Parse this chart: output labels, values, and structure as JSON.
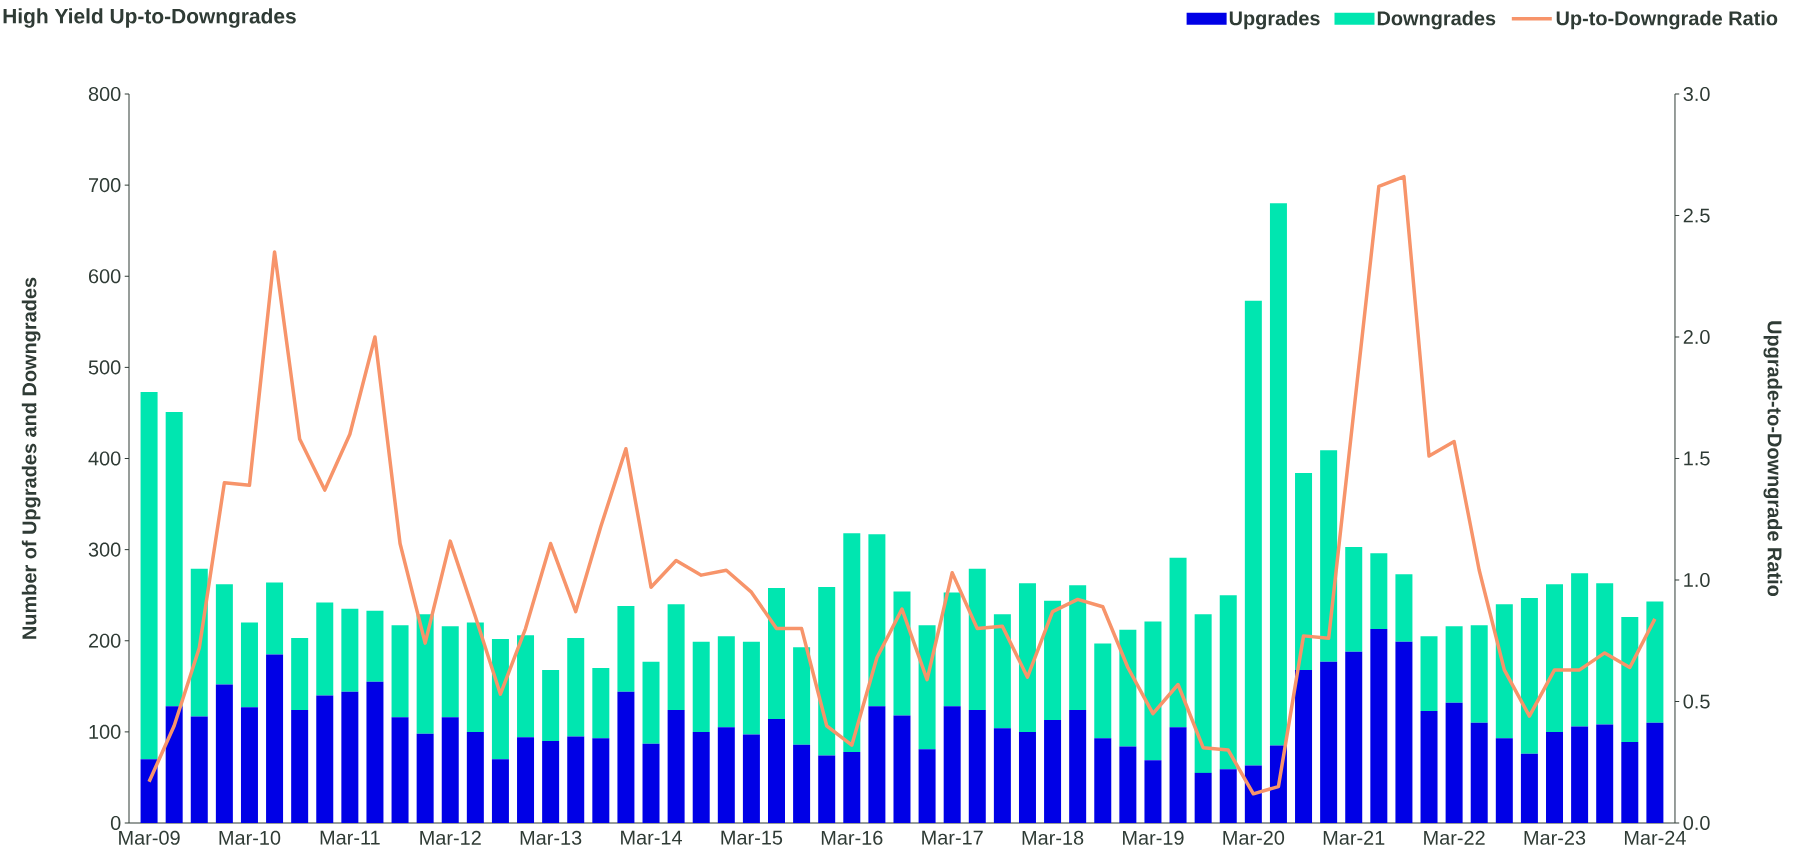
{
  "chart_data": {
    "type": "bar",
    "title": "High Yield Up-to-Downgrades",
    "ylabel": "Number of Upgrades and Downgrades",
    "y2label": "Upgrade-to-Downgrade Ratio",
    "stacked": true,
    "legend": "top right",
    "categories": [
      "Mar-09",
      null,
      null,
      null,
      "Mar-10",
      null,
      null,
      null,
      "Mar-11",
      null,
      null,
      null,
      "Mar-12",
      null,
      null,
      null,
      "Mar-13",
      null,
      null,
      null,
      "Mar-14",
      null,
      null,
      null,
      "Mar-15",
      null,
      null,
      null,
      "Mar-16",
      null,
      null,
      null,
      "Mar-17",
      null,
      null,
      null,
      "Mar-18",
      null,
      null,
      null,
      "Mar-19",
      null,
      null,
      null,
      "Mar-20",
      null,
      null,
      null,
      "Mar-21",
      null,
      null,
      null,
      "Mar-22",
      null,
      null,
      null,
      "Mar-23",
      null,
      null,
      null,
      "Mar-24"
    ],
    "ylim": [
      0,
      800
    ],
    "yticks": [
      0,
      100,
      200,
      300,
      400,
      500,
      600,
      700,
      800
    ],
    "y2lim": [
      0,
      3
    ],
    "y2ticks": [
      {
        "value": 0,
        "label": "0.0"
      },
      {
        "value": 0.5,
        "label": "0.5"
      },
      {
        "value": 1,
        "label": "1.0"
      },
      {
        "value": 1.5,
        "label": "1.5"
      },
      {
        "value": 2,
        "label": "2.0"
      },
      {
        "value": 2.5,
        "label": "2.5"
      },
      {
        "value": 3,
        "label": "3.0"
      }
    ],
    "series": [
      {
        "name": "Upgrades",
        "color": "#0000e6",
        "values": [
          70,
          128,
          117,
          152,
          127,
          185,
          124,
          140,
          144,
          155,
          116,
          98,
          116,
          100,
          70,
          94,
          90,
          95,
          93,
          144,
          87,
          124,
          100,
          105,
          97,
          114,
          86,
          74,
          78,
          128,
          118,
          81,
          128,
          124,
          104,
          100,
          113,
          124,
          93,
          84,
          69,
          105,
          55,
          59,
          63,
          85,
          168,
          177,
          188,
          213,
          199,
          123,
          132,
          110,
          93,
          76,
          100,
          106,
          108,
          89,
          110
        ]
      },
      {
        "name": "Downgrades",
        "color": "#00e6b0",
        "values": [
          403,
          323,
          162,
          110,
          93,
          79,
          79,
          102,
          91,
          78,
          101,
          131,
          100,
          120,
          132,
          112,
          78,
          108,
          77,
          94,
          90,
          116,
          99,
          100,
          102,
          144,
          107,
          185,
          240,
          189,
          136,
          136,
          125,
          155,
          125,
          163,
          131,
          137,
          104,
          128,
          152,
          186,
          174,
          191,
          510,
          595,
          216,
          232,
          115,
          83,
          74,
          82,
          84,
          107,
          147,
          171,
          162,
          168,
          155,
          137,
          133
        ]
      },
      {
        "name": "Up-to-Downgrade Ratio",
        "type": "line",
        "axis": "y2",
        "color": "#f7946a",
        "values": [
          0.17,
          0.4,
          0.72,
          1.4,
          1.39,
          2.35,
          1.58,
          1.37,
          1.6,
          2.0,
          1.15,
          0.74,
          1.16,
          0.85,
          0.53,
          0.8,
          1.15,
          0.87,
          1.22,
          1.54,
          0.97,
          1.08,
          1.02,
          1.04,
          0.95,
          0.8,
          0.8,
          0.4,
          0.32,
          0.68,
          0.88,
          0.59,
          1.03,
          0.8,
          0.81,
          0.6,
          0.87,
          0.92,
          0.89,
          0.64,
          0.45,
          0.57,
          0.31,
          0.3,
          0.12,
          0.15,
          0.77,
          0.76,
          1.69,
          2.62,
          2.66,
          1.51,
          1.57,
          1.04,
          0.63,
          0.44,
          0.63,
          0.63,
          0.7,
          0.64,
          0.84
        ]
      }
    ]
  }
}
